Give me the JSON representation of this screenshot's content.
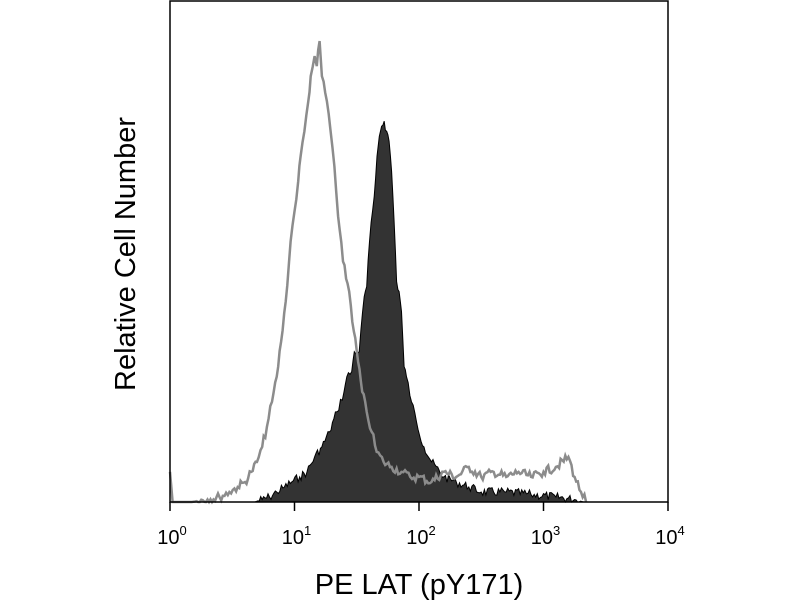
{
  "chart_data": {
    "type": "area",
    "xlabel": "PE LAT (pY171)",
    "ylabel": "Relative Cell Number",
    "xscale": "log",
    "xlim": [
      1,
      10000
    ],
    "ylim": [
      0,
      100
    ],
    "grid": false,
    "x_ticks": [
      {
        "base": "10",
        "exp": "0",
        "value": 1
      },
      {
        "base": "10",
        "exp": "1",
        "value": 10
      },
      {
        "base": "10",
        "exp": "2",
        "value": 100
      },
      {
        "base": "10",
        "exp": "3",
        "value": 1000
      },
      {
        "base": "10",
        "exp": "4",
        "value": 10000
      }
    ],
    "series": [
      {
        "style": "filled",
        "color": "#333333",
        "points": [
          [
            4.8,
            0
          ],
          [
            5.5,
            0.5
          ],
          [
            6.3,
            1
          ],
          [
            7.2,
            2
          ],
          [
            8.3,
            3
          ],
          [
            9.5,
            4
          ],
          [
            11,
            5
          ],
          [
            12.6,
            6
          ],
          [
            14.5,
            9
          ],
          [
            16.6,
            11
          ],
          [
            19.1,
            14
          ],
          [
            21.9,
            18
          ],
          [
            25,
            22
          ],
          [
            26.3,
            25
          ],
          [
            28.8,
            26
          ],
          [
            30.2,
            30
          ],
          [
            33.1,
            30
          ],
          [
            36.3,
            41
          ],
          [
            38,
            43
          ],
          [
            40,
            52
          ],
          [
            43.7,
            61
          ],
          [
            46,
            69
          ],
          [
            48,
            73
          ],
          [
            50.1,
            75
          ],
          [
            52.5,
            76
          ],
          [
            55,
            74
          ],
          [
            57.5,
            72
          ],
          [
            60.3,
            66
          ],
          [
            63.1,
            56
          ],
          [
            66.1,
            44
          ],
          [
            69.2,
            42
          ],
          [
            72.4,
            38
          ],
          [
            75.9,
            27
          ],
          [
            79.4,
            25
          ],
          [
            87.1,
            20
          ],
          [
            95.5,
            16
          ],
          [
            109.6,
            11
          ],
          [
            125.9,
            8
          ],
          [
            158.5,
            5
          ],
          [
            199.5,
            4
          ],
          [
            251.2,
            3
          ],
          [
            316.2,
            2
          ],
          [
            501.2,
            2
          ],
          [
            794.3,
            1.5
          ],
          [
            1258.9,
            1
          ],
          [
            1778.3,
            0.5
          ],
          [
            2100,
            0
          ]
        ]
      },
      {
        "style": "outline",
        "color": "#8c8c8c",
        "points": [
          [
            1,
            6
          ],
          [
            1.05,
            0
          ],
          [
            1.5,
            0
          ],
          [
            2,
            0.5
          ],
          [
            2.5,
            1
          ],
          [
            3,
            2
          ],
          [
            3.5,
            3
          ],
          [
            4,
            4
          ],
          [
            4.5,
            6
          ],
          [
            5,
            8
          ],
          [
            5.5,
            11
          ],
          [
            6,
            15
          ],
          [
            6.6,
            20
          ],
          [
            7.2,
            25
          ],
          [
            7.8,
            32
          ],
          [
            8.5,
            40
          ],
          [
            9.3,
            52
          ],
          [
            10,
            58
          ],
          [
            10.7,
            64
          ],
          [
            11.2,
            69
          ],
          [
            12,
            74
          ],
          [
            12.9,
            80
          ],
          [
            13.5,
            85
          ],
          [
            14.5,
            89
          ],
          [
            15.1,
            87
          ],
          [
            15.9,
            92
          ],
          [
            16.6,
            85
          ],
          [
            18.2,
            80
          ],
          [
            19.5,
            74
          ],
          [
            20.9,
            67
          ],
          [
            22.4,
            57
          ],
          [
            24.5,
            48
          ],
          [
            27.5,
            42
          ],
          [
            30,
            34
          ],
          [
            32.4,
            28
          ],
          [
            35,
            22
          ],
          [
            38,
            18
          ],
          [
            41.7,
            14
          ],
          [
            45.7,
            10
          ],
          [
            52,
            8
          ],
          [
            60.3,
            7
          ],
          [
            72.4,
            6
          ],
          [
            85,
            5
          ],
          [
            100,
            5
          ],
          [
            125.9,
            4
          ],
          [
            158.5,
            6
          ],
          [
            199.5,
            5
          ],
          [
            251.2,
            7
          ],
          [
            316.2,
            5
          ],
          [
            398.1,
            6
          ],
          [
            501.2,
            5
          ],
          [
            630.9,
            6
          ],
          [
            794.3,
            5
          ],
          [
            1000,
            6
          ],
          [
            1258.9,
            7
          ],
          [
            1584.9,
            9
          ],
          [
            1778.3,
            5
          ],
          [
            2000,
            2
          ],
          [
            2200,
            0
          ]
        ]
      }
    ]
  }
}
